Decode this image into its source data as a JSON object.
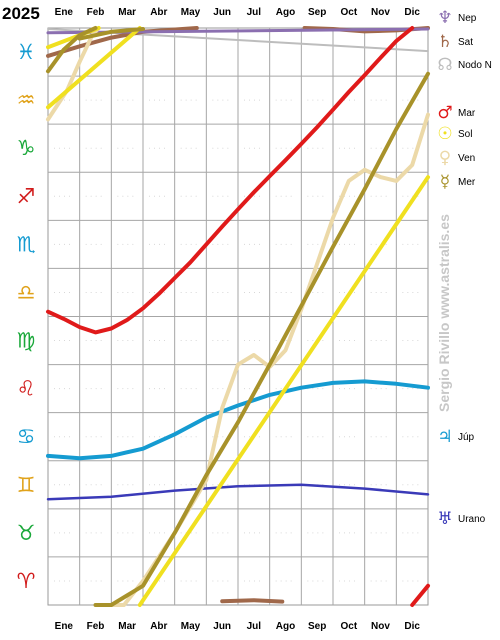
{
  "chart_data": {
    "type": "line",
    "title": "2025",
    "x_months": [
      "Ene",
      "Feb",
      "Mar",
      "Abr",
      "May",
      "Jun",
      "Jul",
      "Ago",
      "Sep",
      "Oct",
      "Nov",
      "Dic"
    ],
    "xlim": [
      0,
      12
    ],
    "ylim": [
      0,
      12
    ],
    "signs": [
      {
        "name": "Aries",
        "glyph": "♈",
        "color": "#d11b1b"
      },
      {
        "name": "Tauro",
        "glyph": "♉",
        "color": "#1aa83a"
      },
      {
        "name": "Géminis",
        "glyph": "♊",
        "color": "#e0a21a"
      },
      {
        "name": "Cáncer",
        "glyph": "♋",
        "color": "#159bd1"
      },
      {
        "name": "Leo",
        "glyph": "♌",
        "color": "#d11b1b"
      },
      {
        "name": "Virgo",
        "glyph": "♍",
        "color": "#1aa83a"
      },
      {
        "name": "Libra",
        "glyph": "♎",
        "color": "#e0a21a"
      },
      {
        "name": "Escorpio",
        "glyph": "♏",
        "color": "#159bd1"
      },
      {
        "name": "Sagitario",
        "glyph": "♐",
        "color": "#d11b1b"
      },
      {
        "name": "Capricornio",
        "glyph": "♑",
        "color": "#1aa83a"
      },
      {
        "name": "Acuario",
        "glyph": "♒",
        "color": "#e0a21a"
      },
      {
        "name": "Piscis",
        "glyph": "♓",
        "color": "#159bd1"
      }
    ],
    "series": [
      {
        "name": "Nep",
        "glyph": "♆",
        "color": "#8b6fb0",
        "legend_group": "top",
        "width": 3,
        "segments": [
          [
            [
              0,
              11.9
            ],
            [
              12,
              11.98
            ]
          ]
        ]
      },
      {
        "name": "Sat",
        "glyph": "♄",
        "color": "#a0684a",
        "legend_group": "top",
        "width": 4,
        "segments": [
          [
            [
              0,
              11.42
            ],
            [
              1,
              11.62
            ],
            [
              2,
              11.8
            ],
            [
              3,
              11.92
            ],
            [
              4.7,
              12
            ]
          ],
          [
            [
              8.1,
              12
            ],
            [
              9,
              11.98
            ],
            [
              10,
              11.93
            ],
            [
              11,
              11.95
            ],
            [
              12,
              12
            ]
          ],
          [
            [
              5.5,
              0.08
            ],
            [
              6.5,
              0.1
            ],
            [
              7.4,
              0.07
            ]
          ]
        ]
      },
      {
        "name": "Nodo N",
        "glyph": "☊",
        "color": "#bdbdbd",
        "legend_group": "top",
        "width": 2,
        "segments": [
          [
            [
              0,
              11.98
            ],
            [
              12,
              11.52
            ]
          ]
        ]
      },
      {
        "name": "Mar",
        "glyph": "♂",
        "color": "#e01a1a",
        "legend_group": "inner",
        "width": 4,
        "segments": [
          [
            [
              0,
              6.1
            ],
            [
              0.5,
              5.95
            ],
            [
              1,
              5.78
            ],
            [
              1.5,
              5.67
            ],
            [
              2,
              5.75
            ],
            [
              2.5,
              5.93
            ],
            [
              3,
              6.17
            ],
            [
              3.5,
              6.47
            ],
            [
              4,
              6.8
            ],
            [
              4.5,
              7.13
            ],
            [
              5,
              7.5
            ],
            [
              5.5,
              7.87
            ],
            [
              6,
              8.23
            ],
            [
              6.5,
              8.58
            ],
            [
              7,
              8.92
            ],
            [
              7.5,
              9.25
            ],
            [
              8,
              9.59
            ],
            [
              8.5,
              9.94
            ],
            [
              9,
              10.3
            ],
            [
              9.5,
              10.67
            ],
            [
              10,
              11.02
            ],
            [
              10.5,
              11.38
            ],
            [
              11,
              11.73
            ],
            [
              11.5,
              12
            ]
          ],
          [
            [
              11.5,
              0
            ],
            [
              12,
              0.4
            ]
          ]
        ]
      },
      {
        "name": "Sol",
        "glyph": "☉",
        "color": "#f0e020",
        "legend_group": "inner",
        "width": 4,
        "segments": [
          [
            [
              0,
              10.35
            ],
            [
              2.9,
              12
            ]
          ],
          [
            [
              2.9,
              0
            ],
            [
              12,
              8.9
            ]
          ],
          [
            [
              0,
              11.6
            ],
            [
              1.6,
              12
            ]
          ]
        ]
      },
      {
        "name": "Ven",
        "glyph": "♀",
        "color": "#ecd9a8",
        "legend_group": "inner",
        "width": 4,
        "segments": [
          [
            [
              0,
              10.1
            ],
            [
              0.6,
              10.7
            ],
            [
              1,
              11.3
            ],
            [
              1.4,
              11.85
            ],
            [
              1.6,
              12
            ]
          ],
          [
            [
              1.6,
              0
            ],
            [
              2.4,
              0
            ],
            [
              3,
              0.5
            ],
            [
              4,
              1.5
            ],
            [
              5,
              2.6
            ],
            [
              5.5,
              4.1
            ],
            [
              6,
              5.0
            ],
            [
              6.5,
              5.2
            ],
            [
              7,
              4.95
            ],
            [
              7.5,
              5.3
            ],
            [
              8,
              6.15
            ],
            [
              8.5,
              7.1
            ],
            [
              9,
              8.05
            ],
            [
              9.5,
              8.82
            ],
            [
              10,
              9.05
            ],
            [
              10.5,
              8.9
            ],
            [
              11,
              8.82
            ],
            [
              11.5,
              9.15
            ],
            [
              12,
              10.2
            ]
          ]
        ]
      },
      {
        "name": "Mer",
        "glyph": "☿",
        "color": "#a8922a",
        "legend_group": "inner",
        "width": 4,
        "segments": [
          [
            [
              0,
              11.1
            ],
            [
              0.5,
              11.55
            ],
            [
              1,
              11.85
            ],
            [
              1.5,
              12
            ]
          ],
          [
            [
              1.5,
              0
            ],
            [
              2,
              0
            ],
            [
              3,
              0.4
            ],
            [
              4,
              1.5
            ],
            [
              5,
              2.7
            ],
            [
              6,
              3.8
            ],
            [
              7,
              5.0
            ],
            [
              8,
              6.22
            ],
            [
              9,
              7.45
            ],
            [
              10,
              8.65
            ],
            [
              11,
              9.9
            ],
            [
              12,
              11.05
            ]
          ],
          [
            [
              1,
              11.78
            ],
            [
              2,
              11.92
            ],
            [
              3,
              11.98
            ]
          ]
        ]
      },
      {
        "name": "Júp",
        "glyph": "♃",
        "color": "#159bd1",
        "legend_group": "side",
        "width": 4,
        "segments": [
          [
            [
              0,
              3.1
            ],
            [
              1,
              3.05
            ],
            [
              2,
              3.1
            ],
            [
              3,
              3.25
            ],
            [
              4,
              3.55
            ],
            [
              5,
              3.9
            ],
            [
              6,
              4.15
            ],
            [
              7,
              4.37
            ],
            [
              8,
              4.52
            ],
            [
              9,
              4.62
            ],
            [
              10,
              4.65
            ],
            [
              11,
              4.6
            ],
            [
              12,
              4.52
            ]
          ]
        ]
      },
      {
        "name": "Urano",
        "glyph": "♅",
        "color": "#3a3ab8",
        "legend_group": "side",
        "width": 2.5,
        "segments": [
          [
            [
              0,
              2.2
            ],
            [
              2,
              2.25
            ],
            [
              4,
              2.38
            ],
            [
              6,
              2.47
            ],
            [
              8,
              2.5
            ],
            [
              10,
              2.42
            ],
            [
              12,
              2.3
            ]
          ]
        ]
      }
    ],
    "grid": true
  },
  "credit": "Sergio Rivillo www.astralis.es"
}
